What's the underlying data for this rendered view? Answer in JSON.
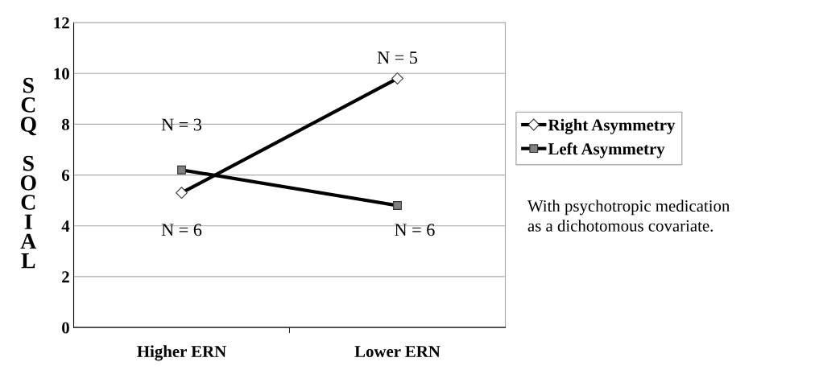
{
  "chart_data": {
    "type": "line",
    "ylabel": "S\nC\nQ\n\nS\nO\nC\nI\nA\nL",
    "categories": [
      "Higher ERN",
      "Lower ERN"
    ],
    "series": [
      {
        "name": "Right Asymmetry",
        "color": "#000000",
        "marker": "diamond",
        "values": [
          5.3,
          9.8
        ]
      },
      {
        "name": "Left Asymmetry",
        "color": "#000000",
        "marker": "square",
        "values": [
          6.2,
          4.8
        ]
      }
    ],
    "ylim": [
      0,
      12
    ],
    "yticks": [
      0,
      2,
      4,
      6,
      8,
      10,
      12
    ],
    "grid": "y",
    "legend": "right",
    "line_style": "solid",
    "annotations": [
      "N = 3",
      "N = 6",
      "N = 5",
      "N = 6",
      "With psychotropic medication\nas a dichotomous covariate."
    ]
  }
}
